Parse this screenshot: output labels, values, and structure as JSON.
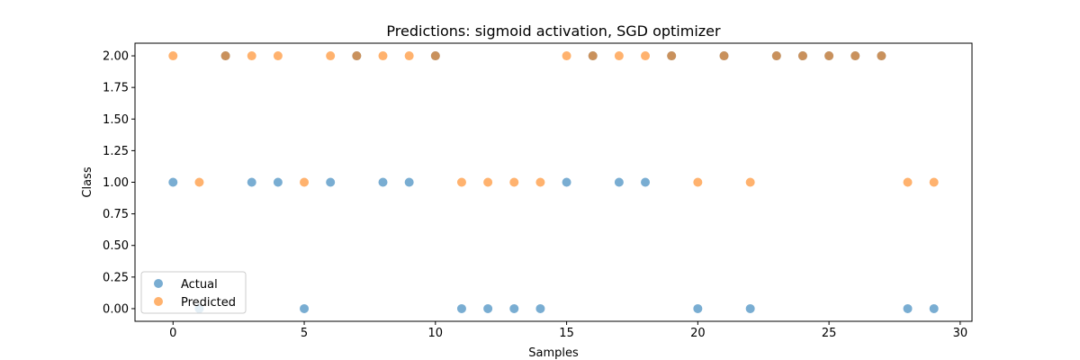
{
  "chart_data": {
    "type": "scatter",
    "title": "Predictions: sigmoid activation, SGD optimizer",
    "xlabel": "Samples",
    "ylabel": "Class",
    "xlim": [
      -1.45,
      30.45
    ],
    "ylim": [
      -0.1,
      2.1
    ],
    "xticks": [
      0,
      5,
      10,
      15,
      20,
      25,
      30
    ],
    "yticks": [
      0.0,
      0.25,
      0.5,
      0.75,
      1.0,
      1.25,
      1.5,
      1.75,
      2.0
    ],
    "xtick_labels": [
      "0",
      "5",
      "10",
      "15",
      "20",
      "25",
      "30"
    ],
    "ytick_labels": [
      "0.00",
      "0.25",
      "0.50",
      "0.75",
      "1.00",
      "1.25",
      "1.50",
      "1.75",
      "2.00"
    ],
    "grid": false,
    "legend_position": "lower-left",
    "series": [
      {
        "name": "Actual",
        "color": "#1f77b4",
        "alpha": 0.6,
        "x": [
          0,
          1,
          2,
          3,
          4,
          5,
          6,
          7,
          8,
          9,
          10,
          11,
          12,
          13,
          14,
          15,
          16,
          17,
          18,
          19,
          20,
          21,
          22,
          23,
          24,
          25,
          26,
          27,
          28,
          29
        ],
        "y": [
          1,
          0,
          2,
          1,
          1,
          0,
          1,
          2,
          1,
          1,
          2,
          0,
          0,
          0,
          0,
          1,
          2,
          1,
          1,
          2,
          0,
          2,
          0,
          2,
          2,
          2,
          2,
          2,
          0,
          0
        ]
      },
      {
        "name": "Predicted",
        "color": "#ff7f0e",
        "alpha": 0.6,
        "x": [
          0,
          1,
          2,
          3,
          4,
          5,
          6,
          7,
          8,
          9,
          10,
          11,
          12,
          13,
          14,
          15,
          16,
          17,
          18,
          19,
          20,
          21,
          22,
          23,
          24,
          25,
          26,
          27,
          28,
          29
        ],
        "y": [
          2,
          1,
          2,
          2,
          2,
          1,
          2,
          2,
          2,
          2,
          2,
          1,
          1,
          1,
          1,
          2,
          2,
          2,
          2,
          2,
          1,
          2,
          1,
          2,
          2,
          2,
          2,
          2,
          1,
          1
        ]
      }
    ]
  }
}
